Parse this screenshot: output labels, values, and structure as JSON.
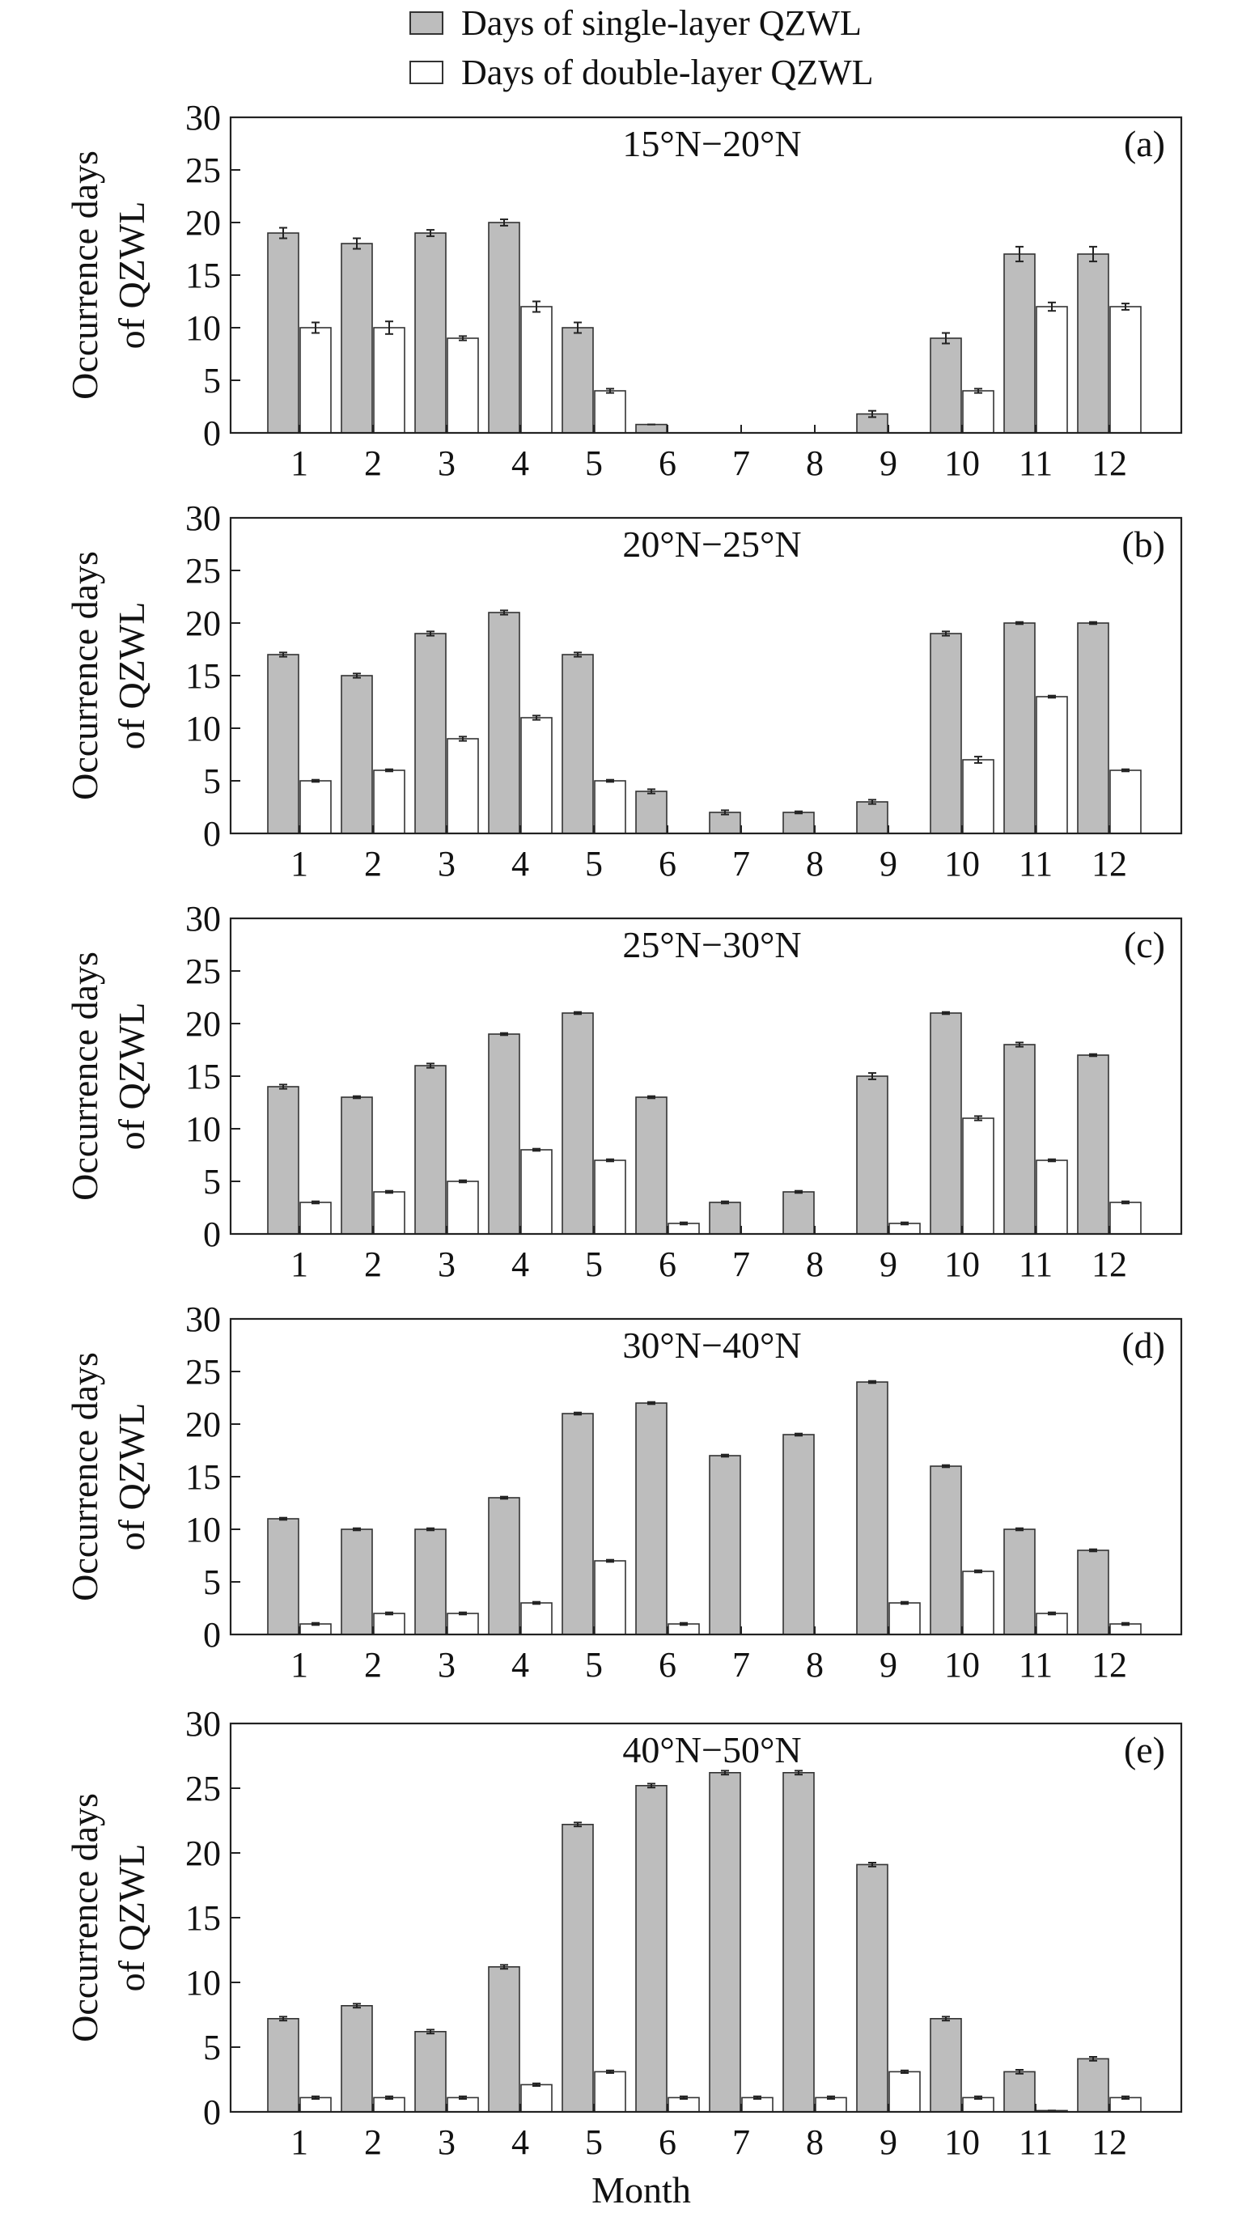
{
  "legend": {
    "items": [
      {
        "label": "Days of single-layer QZWL",
        "swatch": "#bdbdbd"
      },
      {
        "label": "Days of double-layer QZWL",
        "swatch": "#ffffff"
      }
    ]
  },
  "colors": {
    "single": "#bdbdbd",
    "double": "#ffffff",
    "stroke": "#333333"
  },
  "chart_data": [
    {
      "type": "bar",
      "panel": "(a)",
      "title": "15°N−20°N",
      "xlabel": "",
      "ylabel": "Occurrence days of QZWL",
      "ylim": [
        0,
        30
      ],
      "yticks": [
        0,
        5,
        10,
        15,
        20,
        25,
        30
      ],
      "categories": [
        "1",
        "2",
        "3",
        "4",
        "5",
        "6",
        "7",
        "8",
        "9",
        "10",
        "11",
        "12"
      ],
      "series": [
        {
          "name": "Days of single-layer QZWL",
          "values": [
            19,
            18,
            19,
            20,
            10,
            0.8,
            0,
            0,
            1.8,
            9,
            17,
            17
          ],
          "errors": [
            0.5,
            0.5,
            0.3,
            0.3,
            0.5,
            0,
            0,
            0,
            0.3,
            0.5,
            0.7,
            0.7
          ]
        },
        {
          "name": "Days of double-layer QZWL",
          "values": [
            10,
            10,
            9,
            12,
            4,
            0,
            0,
            0,
            0,
            4,
            12,
            12
          ],
          "errors": [
            0.5,
            0.6,
            0.2,
            0.5,
            0.2,
            0,
            0,
            0,
            0,
            0.2,
            0.4,
            0.3
          ]
        }
      ]
    },
    {
      "type": "bar",
      "panel": "(b)",
      "title": "20°N−25°N",
      "xlabel": "",
      "ylabel": "Occurrence days of QZWL",
      "ylim": [
        0,
        30
      ],
      "yticks": [
        0,
        5,
        10,
        15,
        20,
        25,
        30
      ],
      "categories": [
        "1",
        "2",
        "3",
        "4",
        "5",
        "6",
        "7",
        "8",
        "9",
        "10",
        "11",
        "12"
      ],
      "series": [
        {
          "name": "Days of single-layer QZWL",
          "values": [
            17,
            15,
            19,
            21,
            17,
            4,
            2,
            2,
            3,
            19,
            20,
            20
          ],
          "errors": [
            0.2,
            0.2,
            0.2,
            0.2,
            0.2,
            0.2,
            0.2,
            0.1,
            0.2,
            0.2,
            0.1,
            0.1
          ]
        },
        {
          "name": "Days of double-layer QZWL",
          "values": [
            5,
            6,
            9,
            11,
            5,
            0,
            0,
            0,
            0,
            7,
            13,
            6
          ],
          "errors": [
            0.1,
            0.1,
            0.2,
            0.2,
            0.1,
            0,
            0,
            0,
            0,
            0.3,
            0.1,
            0.1
          ]
        }
      ]
    },
    {
      "type": "bar",
      "panel": "(c)",
      "title": "25°N−30°N",
      "xlabel": "",
      "ylabel": "Occurrence days of QZWL",
      "ylim": [
        0,
        30
      ],
      "yticks": [
        0,
        5,
        10,
        15,
        20,
        25,
        30
      ],
      "categories": [
        "1",
        "2",
        "3",
        "4",
        "5",
        "6",
        "7",
        "8",
        "9",
        "10",
        "11",
        "12"
      ],
      "series": [
        {
          "name": "Days of single-layer QZWL",
          "values": [
            14,
            13,
            16,
            19,
            21,
            13,
            3,
            4,
            15,
            21,
            18,
            17
          ],
          "errors": [
            0.2,
            0.1,
            0.2,
            0.1,
            0.1,
            0.1,
            0.1,
            0.1,
            0.3,
            0.1,
            0.2,
            0.1
          ]
        },
        {
          "name": "Days of double-layer QZWL",
          "values": [
            3,
            4,
            5,
            8,
            7,
            1,
            0,
            0,
            1,
            11,
            7,
            3
          ],
          "errors": [
            0.1,
            0.1,
            0.1,
            0.1,
            0.1,
            0.1,
            0,
            0,
            0.1,
            0.2,
            0.1,
            0.1
          ]
        }
      ]
    },
    {
      "type": "bar",
      "panel": "(d)",
      "title": "30°N−40°N",
      "xlabel": "",
      "ylabel": "Occurrence days of QZWL",
      "ylim": [
        0,
        30
      ],
      "yticks": [
        0,
        5,
        10,
        15,
        20,
        25,
        30
      ],
      "categories": [
        "1",
        "2",
        "3",
        "4",
        "5",
        "6",
        "7",
        "8",
        "9",
        "10",
        "11",
        "12"
      ],
      "series": [
        {
          "name": "Days of single-layer QZWL",
          "values": [
            11,
            10,
            10,
            13,
            21,
            22,
            17,
            19,
            24,
            16,
            10,
            8
          ],
          "errors": [
            0.1,
            0.1,
            0.1,
            0.1,
            0.1,
            0.1,
            0.1,
            0.1,
            0.1,
            0.1,
            0.1,
            0.1
          ]
        },
        {
          "name": "Days of double-layer QZWL",
          "values": [
            1,
            2,
            2,
            3,
            7,
            1,
            0,
            0,
            3,
            6,
            2,
            1
          ],
          "errors": [
            0.1,
            0.1,
            0.1,
            0.1,
            0.1,
            0.1,
            0,
            0,
            0.1,
            0.1,
            0.1,
            0.1
          ]
        }
      ]
    },
    {
      "type": "bar",
      "panel": "(e)",
      "title": "40°N−50°N",
      "xlabel": "Month",
      "ylabel": "Occurrence days of QZWL",
      "ylim": [
        0,
        30
      ],
      "yticks": [
        0,
        5,
        10,
        15,
        20,
        25,
        30
      ],
      "categories": [
        "1",
        "2",
        "3",
        "4",
        "5",
        "6",
        "7",
        "8",
        "9",
        "10",
        "11",
        "12"
      ],
      "series": [
        {
          "name": "Days of single-layer QZWL",
          "values": [
            7.2,
            8.2,
            6.2,
            11.2,
            22.2,
            25.2,
            26.2,
            26.2,
            19.1,
            7.2,
            3.1,
            4.1
          ],
          "errors": [
            0.15,
            0.15,
            0.15,
            0.15,
            0.15,
            0.15,
            0.15,
            0.15,
            0.15,
            0.15,
            0.15,
            0.15
          ]
        },
        {
          "name": "Days of double-layer QZWL",
          "values": [
            1.1,
            1.1,
            1.1,
            2.1,
            3.1,
            1.1,
            1.1,
            1.1,
            3.1,
            1.1,
            0.1,
            1.1
          ],
          "errors": [
            0.1,
            0.1,
            0.1,
            0.1,
            0.1,
            0.1,
            0.1,
            0.1,
            0.1,
            0.1,
            0,
            0.1
          ]
        }
      ]
    }
  ]
}
